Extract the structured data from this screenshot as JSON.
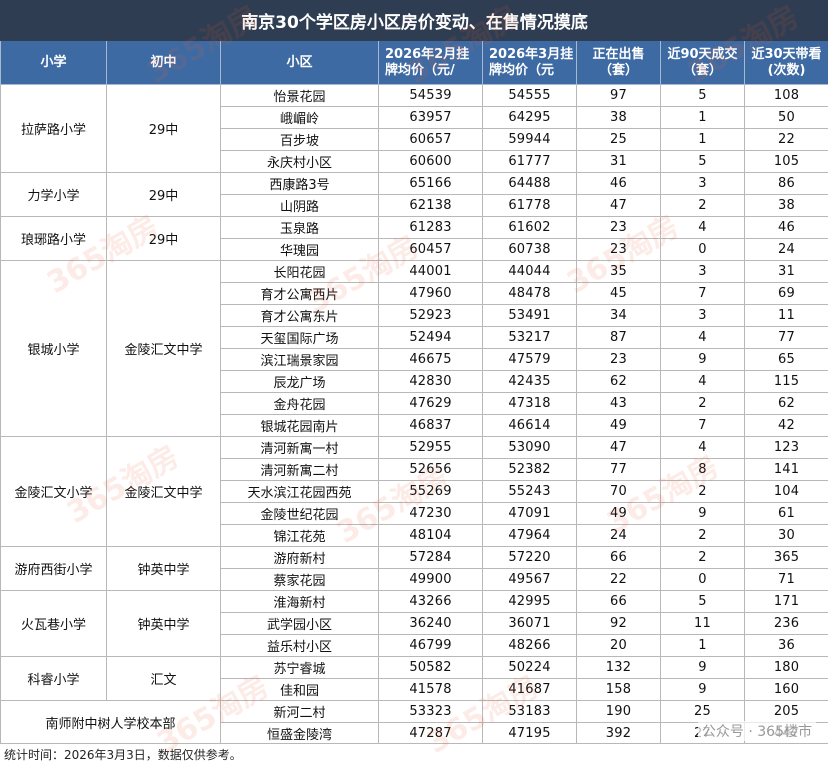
{
  "title": "南京30个学区房小区房价变动、在售情况摸底",
  "headers": [
    "小学",
    "初中",
    "小区",
    "2026年2月挂牌均价（元/",
    "2026年3月挂牌均价（元",
    "正在出售（套）",
    "近90天成交（套）",
    "近30天带看(次数)"
  ],
  "groups": [
    {
      "primary": "拉萨路小学",
      "middle": "29中",
      "rows": [
        [
          "怡景花园",
          "54539",
          "54555",
          "97",
          "5",
          "108"
        ],
        [
          "峨嵋岭",
          "63957",
          "64295",
          "38",
          "1",
          "50"
        ],
        [
          "百步坡",
          "60657",
          "59944",
          "25",
          "1",
          "22"
        ],
        [
          "永庆村小区",
          "60600",
          "61777",
          "31",
          "5",
          "105"
        ]
      ]
    },
    {
      "primary": "力学小学",
      "middle": "29中",
      "rows": [
        [
          "西康路3号",
          "65166",
          "64488",
          "46",
          "3",
          "86"
        ],
        [
          "山阴路",
          "62138",
          "61778",
          "47",
          "2",
          "38"
        ]
      ]
    },
    {
      "primary": "琅琊路小学",
      "middle": "29中",
      "rows": [
        [
          "玉泉路",
          "61283",
          "61602",
          "23",
          "4",
          "46"
        ],
        [
          "华瑰园",
          "60457",
          "60738",
          "23",
          "0",
          "24"
        ]
      ]
    },
    {
      "primary": "银城小学",
      "middle": "金陵汇文中学",
      "rows": [
        [
          "长阳花园",
          "44001",
          "44044",
          "35",
          "3",
          "31"
        ],
        [
          "育才公寓西片",
          "47960",
          "48478",
          "45",
          "7",
          "69"
        ],
        [
          "育才公寓东片",
          "52923",
          "53491",
          "34",
          "3",
          "11"
        ],
        [
          "天玺国际广场",
          "52494",
          "53217",
          "87",
          "4",
          "77"
        ],
        [
          "滨江瑞景家园",
          "46675",
          "47579",
          "23",
          "9",
          "65"
        ],
        [
          "辰龙广场",
          "42830",
          "42435",
          "62",
          "4",
          "115"
        ],
        [
          "金舟花园",
          "47629",
          "47318",
          "43",
          "2",
          "62"
        ],
        [
          "银城花园南片",
          "46837",
          "46614",
          "49",
          "7",
          "42"
        ]
      ]
    },
    {
      "primary": "金陵汇文小学",
      "middle": "金陵汇文中学",
      "rows": [
        [
          "清河新寓一村",
          "52955",
          "53090",
          "47",
          "4",
          "123"
        ],
        [
          "清河新寓二村",
          "52656",
          "52382",
          "77",
          "8",
          "141"
        ],
        [
          "天水滨江花园西苑",
          "55269",
          "55243",
          "70",
          "2",
          "104"
        ],
        [
          "金陵世纪花园",
          "47230",
          "47091",
          "49",
          "9",
          "61"
        ],
        [
          "锦江花苑",
          "48104",
          "47964",
          "24",
          "2",
          "30"
        ]
      ]
    },
    {
      "primary": "游府西街小学",
      "middle": "钟英中学",
      "rows": [
        [
          "游府新村",
          "57284",
          "57220",
          "66",
          "2",
          "365"
        ],
        [
          "蔡家花园",
          "49900",
          "49567",
          "22",
          "0",
          "71"
        ]
      ]
    },
    {
      "primary": "火瓦巷小学",
      "middle": "钟英中学",
      "rows": [
        [
          "淮海新村",
          "43266",
          "42995",
          "66",
          "5",
          "171"
        ],
        [
          "武学园小区",
          "36240",
          "36071",
          "92",
          "11",
          "236"
        ],
        [
          "益乐村小区",
          "46799",
          "48266",
          "20",
          "1",
          "36"
        ]
      ]
    },
    {
      "primary": "科睿小学",
      "middle": "汇文",
      "rows": [
        [
          "苏宁睿城",
          "50582",
          "50224",
          "132",
          "9",
          "180"
        ],
        [
          "佳和园",
          "41578",
          "41687",
          "158",
          "9",
          "160"
        ]
      ]
    },
    {
      "primary": "南师附中树人学校本部",
      "middle": "",
      "merged": true,
      "rows": [
        [
          "新河二村",
          "53323",
          "53183",
          "190",
          "25",
          "205"
        ],
        [
          "恒盛金陵湾",
          "47287",
          "47195",
          "392",
          "27",
          "447"
        ]
      ]
    }
  ],
  "footer": "统计时间：2026年3月3日，数据仅供参考。",
  "watermark": "365淘房",
  "credit": "公众号 · 365楼市"
}
